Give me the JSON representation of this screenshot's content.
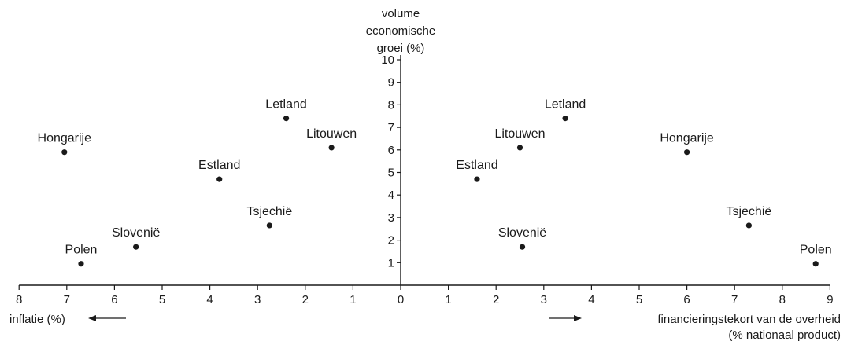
{
  "chart_data": {
    "type": "scatter",
    "y_axis": {
      "title_lines": [
        "volume",
        "economische",
        "groei (%)"
      ],
      "range": [
        0,
        10
      ],
      "ticks": [
        1,
        2,
        3,
        4,
        5,
        6,
        7,
        8,
        9,
        10
      ]
    },
    "left_panel": {
      "x_axis_title": "inflatie (%)",
      "x_range": [
        0,
        8
      ],
      "x_direction": "leftward",
      "ticks": [
        8,
        7,
        6,
        5,
        4,
        3,
        2,
        1
      ],
      "points": [
        {
          "label": "Hongarije",
          "x": 7.05,
          "y": 5.9
        },
        {
          "label": "Letland",
          "x": 2.4,
          "y": 7.4
        },
        {
          "label": "Litouwen",
          "x": 1.45,
          "y": 6.1
        },
        {
          "label": "Estland",
          "x": 3.8,
          "y": 4.7
        },
        {
          "label": "Tsjechië",
          "x": 2.75,
          "y": 2.65
        },
        {
          "label": "Slovenië",
          "x": 5.55,
          "y": 1.7
        },
        {
          "label": "Polen",
          "x": 6.7,
          "y": 0.95
        }
      ]
    },
    "right_panel": {
      "x_axis_title_lines": [
        "financieringstekort van de overheid",
        "(% nationaal product)"
      ],
      "x_range": [
        0,
        9
      ],
      "x_direction": "rightward",
      "ticks": [
        0,
        1,
        2,
        3,
        4,
        5,
        6,
        7,
        8,
        9
      ],
      "points": [
        {
          "label": "Letland",
          "x": 3.45,
          "y": 7.4
        },
        {
          "label": "Litouwen",
          "x": 2.5,
          "y": 6.1
        },
        {
          "label": "Hongarije",
          "x": 6.0,
          "y": 5.9
        },
        {
          "label": "Estland",
          "x": 1.6,
          "y": 4.7
        },
        {
          "label": "Tsjechië",
          "x": 7.3,
          "y": 2.65
        },
        {
          "label": "Slovenië",
          "x": 2.55,
          "y": 1.7
        },
        {
          "label": "Polen",
          "x": 8.7,
          "y": 0.95
        }
      ]
    }
  }
}
